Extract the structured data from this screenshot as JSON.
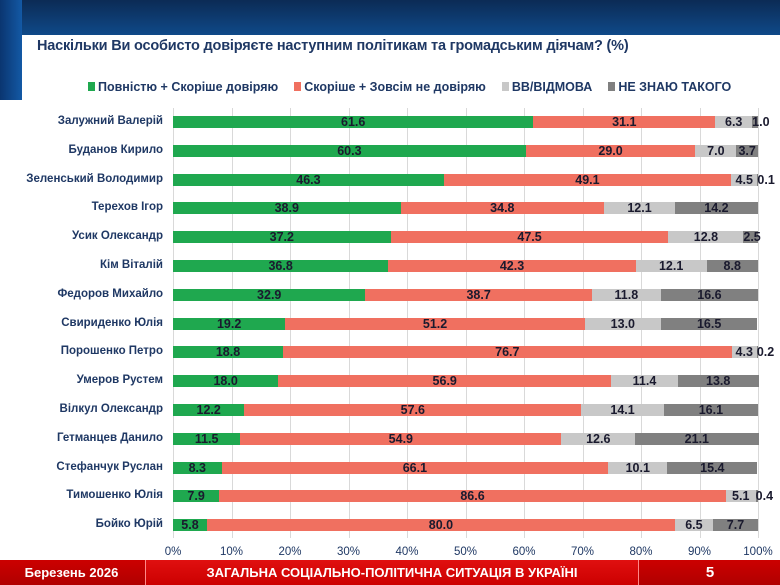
{
  "chart_data": {
    "type": "bar",
    "stacked": true,
    "orientation": "horizontal",
    "title": "Наскільки Ви особисто довіряєте наступним політикам та громадським діячам? (%)",
    "categories": [
      "Залужний Валерій",
      "Буданов Кирило",
      "Зеленський Володимир",
      "Терехов Ігор",
      "Усик Олександр",
      "Кім Віталій",
      "Федоров Михайло",
      "Свириденко Юлія",
      "Порошенко Петро",
      "Умеров Рустем",
      "Вілкул Олександр",
      "Гетманцев Данило",
      "Стефанчук Руслан",
      "Тимошенко Юлія",
      "Бойко Юрій"
    ],
    "series": [
      {
        "name": "Повністю + Скоріше довіряю",
        "color": "#1fa84f",
        "values": [
          61.6,
          60.3,
          46.3,
          38.9,
          37.2,
          36.8,
          32.9,
          19.2,
          18.8,
          18.0,
          12.2,
          11.5,
          8.3,
          7.9,
          5.8
        ]
      },
      {
        "name": "Скоріше + Зовсім не довіряю",
        "color": "#f07060",
        "values": [
          31.1,
          29.0,
          49.1,
          34.8,
          47.5,
          42.3,
          38.7,
          51.2,
          76.7,
          56.9,
          57.6,
          54.9,
          66.1,
          86.6,
          80.0
        ]
      },
      {
        "name": "ВВ/ВІДМОВА",
        "color": "#c8c8c8",
        "values": [
          6.3,
          7.0,
          4.5,
          12.1,
          12.8,
          12.1,
          11.8,
          13.0,
          4.3,
          11.4,
          14.1,
          12.6,
          10.1,
          5.1,
          6.5
        ]
      },
      {
        "name": "НЕ ЗНАЮ ТАКОГО",
        "color": "#808080",
        "values": [
          1.0,
          3.7,
          0.1,
          14.2,
          2.5,
          8.8,
          16.6,
          16.5,
          0.2,
          13.8,
          16.1,
          21.1,
          15.4,
          0.4,
          7.7
        ]
      }
    ],
    "xlim": [
      0,
      100
    ],
    "xticks": [
      "0%",
      "10%",
      "20%",
      "30%",
      "40%",
      "50%",
      "60%",
      "70%",
      "80%",
      "90%",
      "100%"
    ],
    "grid": true,
    "legend": "top"
  },
  "footer": {
    "date": "Березень 2026",
    "section": "ЗАГАЛЬНА СОЦІАЛЬНО-ПОЛІТИЧНА СИТУАЦІЯ В УКРАЇНІ",
    "page": "5"
  }
}
